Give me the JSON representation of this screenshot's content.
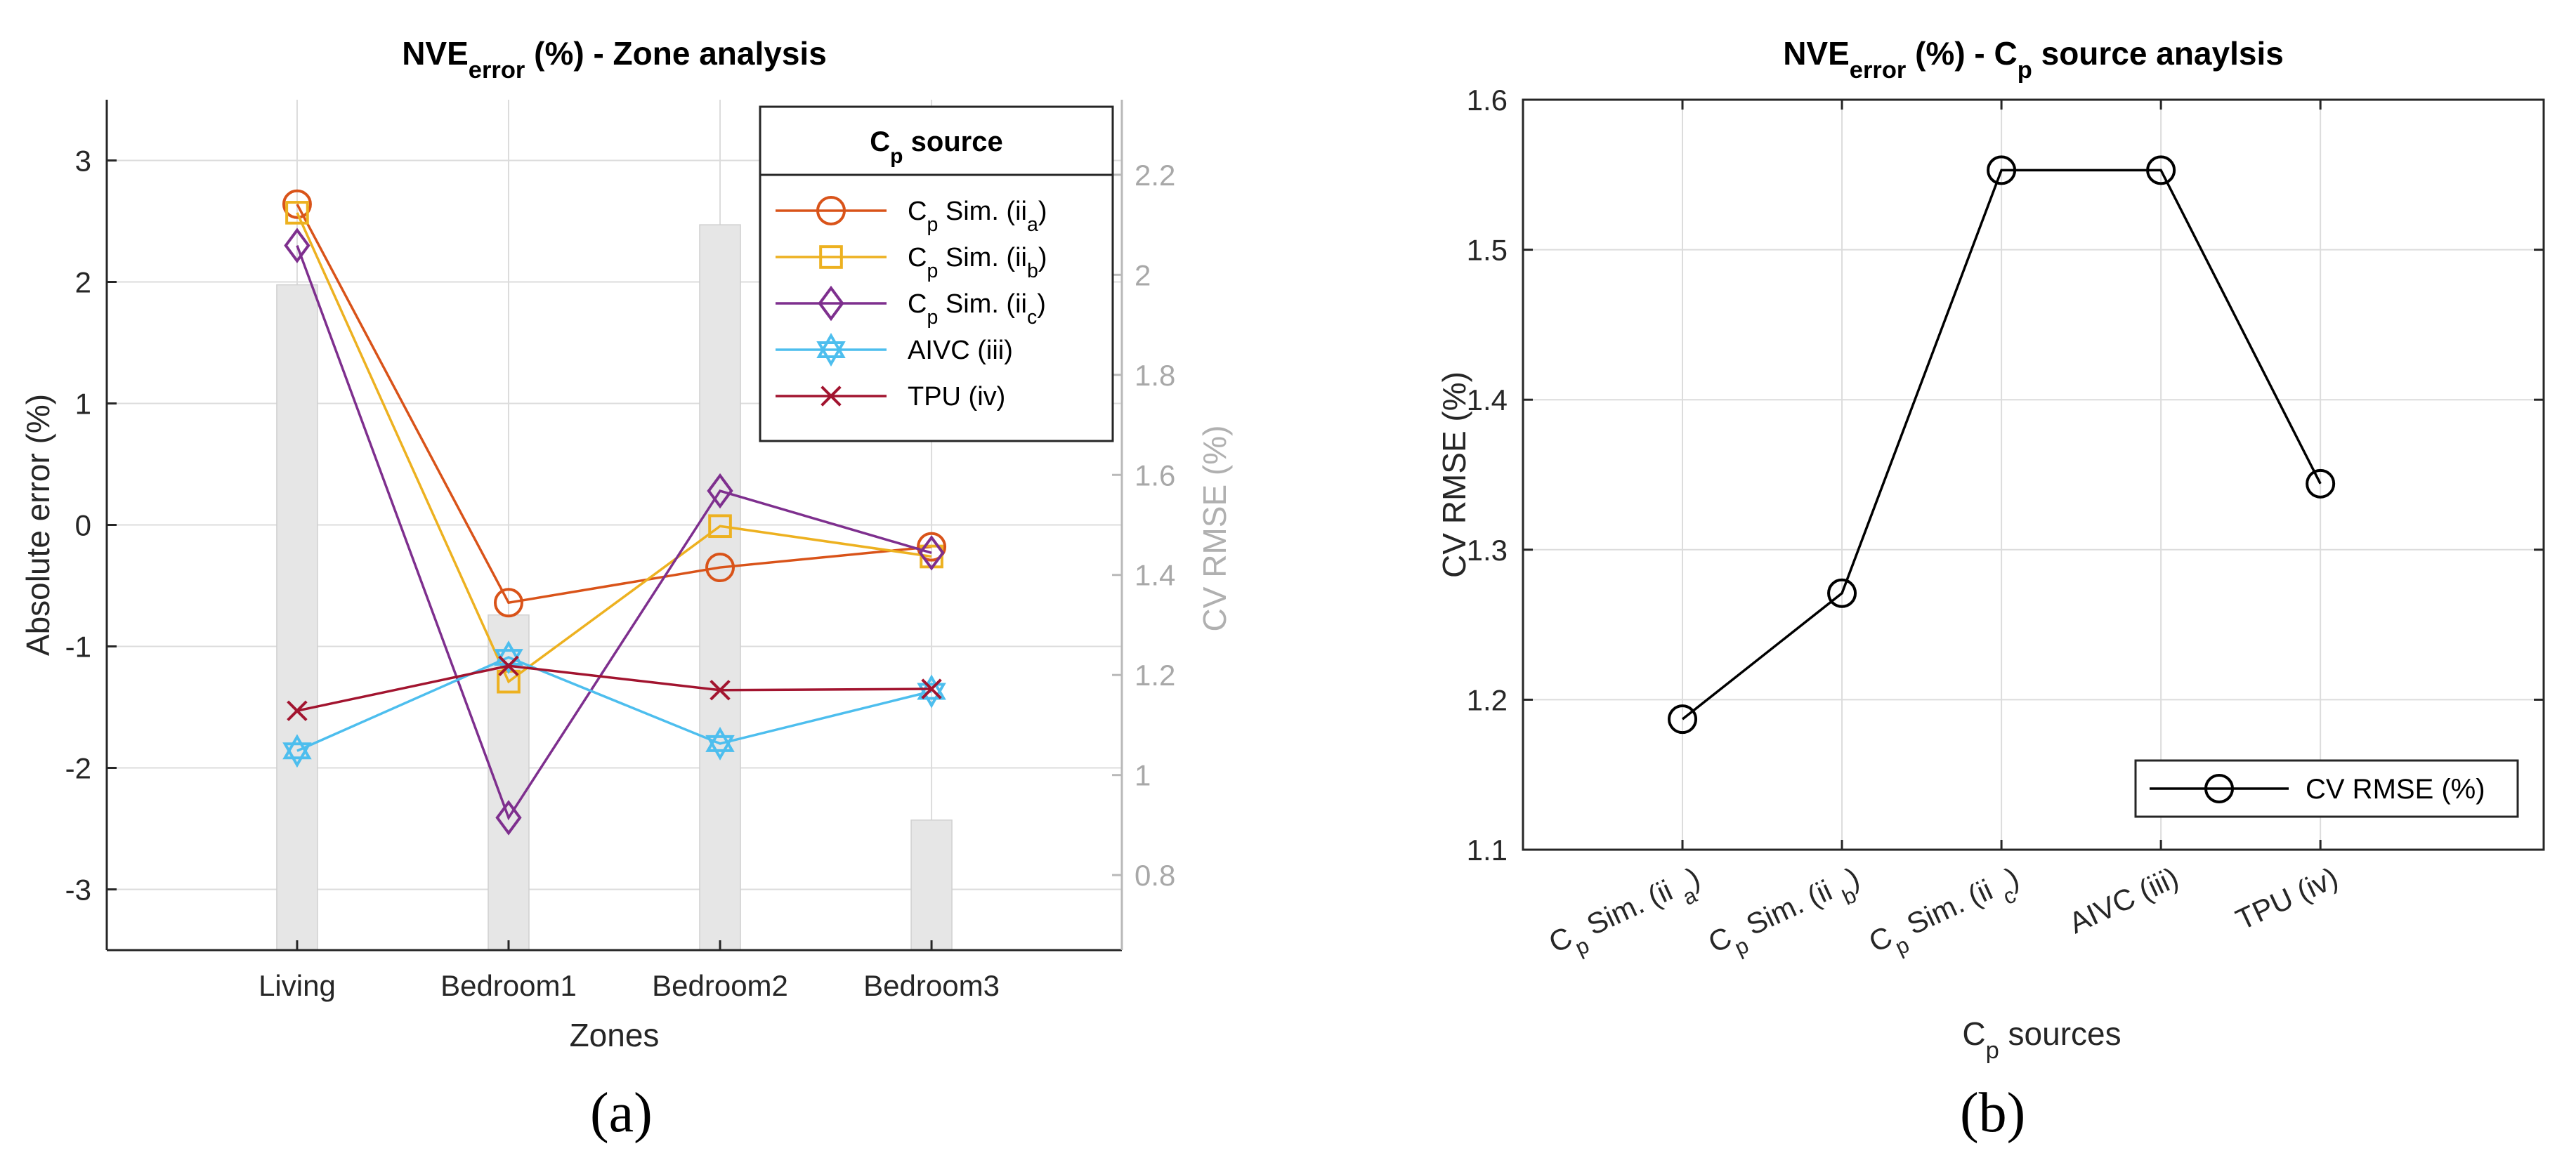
{
  "colors": {
    "cp_ii_a": "#D95319",
    "cp_ii_b": "#EDB120",
    "cp_ii_c": "#7E2F8E",
    "aivc_iii": "#4DBEEE",
    "tpu_iv": "#A2142F",
    "cv_bar": "#e6e6e6",
    "cv_axis": "#b9b9b9",
    "black": "#000000"
  },
  "panel_a": {
    "caption": "(a)",
    "title": {
      "main": "NVE",
      "sub": "error",
      "rest": " (%) - Zone analysis"
    },
    "xlabel": "Zones",
    "ylabel": "Absolute error (%)",
    "y2label": "CV RMSE (%)",
    "legend_title": {
      "main": "C",
      "sub": "p",
      "rest": " source"
    }
  },
  "panel_b": {
    "caption": "(b)",
    "title": {
      "main": "NVE",
      "sub": "error",
      "rest": " (%) - C",
      "sub2": "p",
      "rest2": " source anaylsis"
    },
    "xlabel": {
      "main": "C",
      "sub": "p",
      "rest": " sources"
    },
    "ylabel": "CV RMSE (%)",
    "legend_label": "CV RMSE (%)"
  },
  "chart_data": [
    {
      "type": "line",
      "categories": [
        "Living",
        "Bedroom1",
        "Bedroom2",
        "Bedroom3"
      ],
      "ylim": [
        -3.5,
        3.5
      ],
      "yticks": [
        -3,
        -2,
        -1,
        0,
        1,
        2,
        3
      ],
      "grid": true,
      "legend_placement": "top-right",
      "series": [
        {
          "name": "C_p Sim. (ii_a)",
          "label_main": "C",
          "label_sub": "p",
          "label_mid": " Sim. (ii",
          "label_sub2": "a",
          "label_end": ")",
          "marker": "circle",
          "color_key": "cp_ii_a",
          "values": [
            2.64,
            -0.64,
            -0.35,
            -0.18
          ]
        },
        {
          "name": "C_p Sim. (ii_b)",
          "label_main": "C",
          "label_sub": "p",
          "label_mid": " Sim. (ii",
          "label_sub2": "b",
          "label_end": ")",
          "marker": "square",
          "color_key": "cp_ii_b",
          "values": [
            2.57,
            -1.29,
            -0.01,
            -0.26
          ]
        },
        {
          "name": "C_p Sim. (ii_c)",
          "label_main": "C",
          "label_sub": "p",
          "label_mid": " Sim. (ii",
          "label_sub2": "c",
          "label_end": ")",
          "marker": "diamond",
          "color_key": "cp_ii_c",
          "values": [
            2.3,
            -2.41,
            0.28,
            -0.23
          ]
        },
        {
          "name": "AIVC (iii)",
          "label_main": "AIVC (iii)",
          "marker": "hexagram",
          "color_key": "aivc_iii",
          "values": [
            -1.86,
            -1.09,
            -1.8,
            -1.37
          ]
        },
        {
          "name": "TPU (iv)",
          "label_main": "TPU (iv)",
          "marker": "x",
          "color_key": "tpu_iv",
          "values": [
            -1.53,
            -1.16,
            -1.36,
            -1.35
          ]
        }
      ],
      "bars": {
        "axis": "right",
        "name": "CV RMSE (%)",
        "values": [
          1.98,
          1.32,
          2.1,
          0.91
        ],
        "ylim": [
          0.65,
          2.35
        ],
        "yticks": [
          0.8,
          1,
          1.2,
          1.4,
          1.6,
          1.8,
          2,
          2.2
        ]
      }
    },
    {
      "type": "line",
      "categories": [
        "C_p Sim. (ii_a)",
        "C_p Sim. (ii_b)",
        "C_p Sim. (ii_c)",
        "AIVC (iii)",
        "TPU (iv)"
      ],
      "tick_parts": [
        {
          "main": "C",
          "sub": "p",
          "mid": " Sim. (ii ",
          "sub2": "a",
          "end": ")"
        },
        {
          "main": "C",
          "sub": "p",
          "mid": " Sim. (ii ",
          "sub2": "b",
          "end": ")"
        },
        {
          "main": "C",
          "sub": "p",
          "mid": " Sim. (ii ",
          "sub2": "c",
          "end": ")"
        },
        {
          "main": "AIVC (iii)"
        },
        {
          "main": "TPU (iv)"
        }
      ],
      "ylim": [
        1.1,
        1.6
      ],
      "yticks": [
        1.1,
        1.2,
        1.3,
        1.4,
        1.5,
        1.6
      ],
      "grid": true,
      "legend_placement": "bottom-right",
      "series": [
        {
          "name": "CV RMSE (%)",
          "marker": "circle",
          "values": [
            1.187,
            1.271,
            1.553,
            1.553,
            1.344
          ]
        }
      ]
    }
  ]
}
